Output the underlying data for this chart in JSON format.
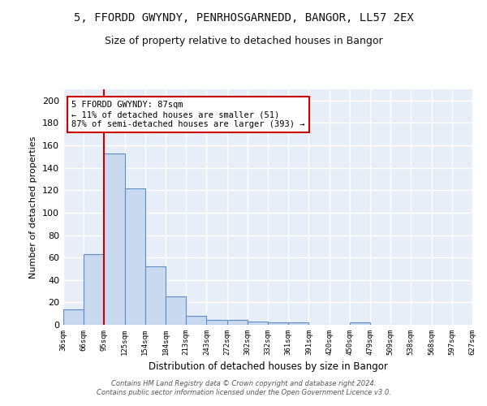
{
  "title_line1": "5, FFORDD GWYNDY, PENRHOSGARNEDD, BANGOR, LL57 2EX",
  "title_line2": "Size of property relative to detached houses in Bangor",
  "xlabel": "Distribution of detached houses by size in Bangor",
  "ylabel": "Number of detached properties",
  "bin_labels": [
    "36sqm",
    "66sqm",
    "95sqm",
    "125sqm",
    "154sqm",
    "184sqm",
    "213sqm",
    "243sqm",
    "272sqm",
    "302sqm",
    "332sqm",
    "361sqm",
    "391sqm",
    "420sqm",
    "450sqm",
    "479sqm",
    "509sqm",
    "538sqm",
    "568sqm",
    "597sqm",
    "627sqm"
  ],
  "n_bins": 20,
  "bar_heights": [
    14,
    63,
    153,
    122,
    52,
    25,
    8,
    4,
    4,
    3,
    2,
    2,
    0,
    0,
    2,
    0,
    0,
    0,
    0,
    0
  ],
  "bar_color": "#c9d9ef",
  "bar_edge_color": "#5b8ec4",
  "vline_x": 2.0,
  "vline_color": "#cc0000",
  "annotation_text": "5 FFORDD GWYNDY: 87sqm\n← 11% of detached houses are smaller (51)\n87% of semi-detached houses are larger (393) →",
  "annotation_box_color": "#ffffff",
  "annotation_box_edge": "#cc0000",
  "ylim": [
    0,
    210
  ],
  "yticks": [
    0,
    20,
    40,
    60,
    80,
    100,
    120,
    140,
    160,
    180,
    200
  ],
  "background_color": "#e8eef8",
  "footer_text": "Contains HM Land Registry data © Crown copyright and database right 2024.\nContains public sector information licensed under the Open Government Licence v3.0.",
  "grid_color": "#ffffff",
  "title_fontsize": 10,
  "subtitle_fontsize": 9
}
